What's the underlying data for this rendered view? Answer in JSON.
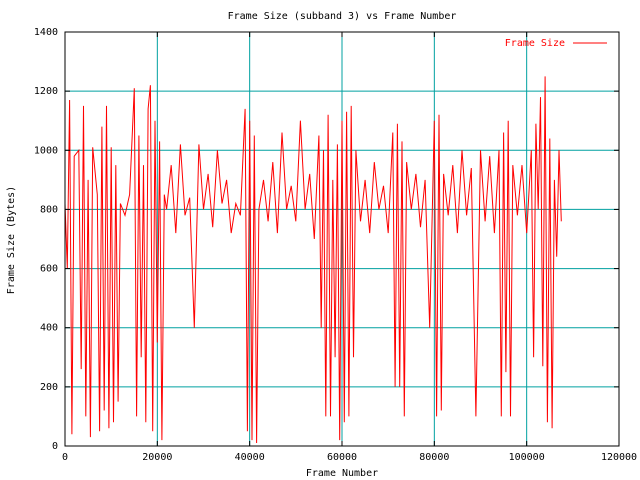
{
  "colors": {
    "background": "#ffffff",
    "grid": "#00a0a0",
    "series": "#ff0000",
    "axis": "#000000"
  },
  "chart_data": {
    "type": "line",
    "title": "Frame Size (subband 3) vs Frame Number",
    "xlabel": "Frame Number",
    "ylabel": "Frame Size (Bytes)",
    "xlim": [
      0,
      120000
    ],
    "ylim": [
      0,
      1400
    ],
    "xticks": [
      0,
      20000,
      40000,
      60000,
      80000,
      100000,
      120000
    ],
    "xtick_labels": [
      "0",
      "20000",
      "40000",
      "60000",
      "80000",
      "100000",
      "120000"
    ],
    "yticks": [
      0,
      200,
      400,
      600,
      800,
      1000,
      1200,
      1400
    ],
    "ytick_labels": [
      "0",
      "200",
      "400",
      "600",
      "800",
      "1000",
      "1200",
      "1400"
    ],
    "grid": true,
    "legend_position": "top-right",
    "x_range_of_data": [
      0,
      107500
    ],
    "typical_range": [
      650,
      1000
    ],
    "series": [
      {
        "name": "Frame Size",
        "color": "#ff0000",
        "points": [
          [
            0,
            820
          ],
          [
            500,
            600
          ],
          [
            1000,
            1170
          ],
          [
            1500,
            40
          ],
          [
            2000,
            980
          ],
          [
            3000,
            1000
          ],
          [
            3500,
            260
          ],
          [
            4000,
            1150
          ],
          [
            4500,
            100
          ],
          [
            5000,
            900
          ],
          [
            5500,
            30
          ],
          [
            6000,
            1010
          ],
          [
            7000,
            850
          ],
          [
            7500,
            50
          ],
          [
            8000,
            1080
          ],
          [
            8500,
            120
          ],
          [
            9000,
            1150
          ],
          [
            9500,
            60
          ],
          [
            10000,
            1010
          ],
          [
            10500,
            80
          ],
          [
            11000,
            950
          ],
          [
            11500,
            150
          ],
          [
            12000,
            820
          ],
          [
            13000,
            780
          ],
          [
            14000,
            850
          ],
          [
            15000,
            1210
          ],
          [
            15500,
            100
          ],
          [
            16000,
            1050
          ],
          [
            16500,
            300
          ],
          [
            17000,
            950
          ],
          [
            17500,
            80
          ],
          [
            18000,
            1140
          ],
          [
            18500,
            1220
          ],
          [
            19000,
            50
          ],
          [
            19500,
            1100
          ],
          [
            20000,
            350
          ],
          [
            20500,
            1030
          ],
          [
            21000,
            20
          ],
          [
            21500,
            850
          ],
          [
            22000,
            800
          ],
          [
            23000,
            950
          ],
          [
            24000,
            720
          ],
          [
            25000,
            1020
          ],
          [
            26000,
            780
          ],
          [
            27000,
            840
          ],
          [
            28000,
            400
          ],
          [
            29000,
            1020
          ],
          [
            30000,
            800
          ],
          [
            31000,
            920
          ],
          [
            32000,
            740
          ],
          [
            33000,
            1000
          ],
          [
            34000,
            820
          ],
          [
            35000,
            900
          ],
          [
            36000,
            720
          ],
          [
            37000,
            820
          ],
          [
            38000,
            780
          ],
          [
            39000,
            1140
          ],
          [
            39500,
            50
          ],
          [
            40000,
            1100
          ],
          [
            40500,
            20
          ],
          [
            41000,
            1050
          ],
          [
            41500,
            10
          ],
          [
            42000,
            800
          ],
          [
            43000,
            900
          ],
          [
            44000,
            760
          ],
          [
            45000,
            960
          ],
          [
            46000,
            720
          ],
          [
            47000,
            1060
          ],
          [
            48000,
            800
          ],
          [
            49000,
            880
          ],
          [
            50000,
            760
          ],
          [
            51000,
            1100
          ],
          [
            52000,
            800
          ],
          [
            53000,
            920
          ],
          [
            54000,
            700
          ],
          [
            55000,
            1050
          ],
          [
            55500,
            400
          ],
          [
            56000,
            1000
          ],
          [
            56500,
            100
          ],
          [
            57000,
            1120
          ],
          [
            57500,
            100
          ],
          [
            58000,
            900
          ],
          [
            58500,
            300
          ],
          [
            59000,
            1020
          ],
          [
            59500,
            20
          ],
          [
            60000,
            1100
          ],
          [
            60500,
            80
          ],
          [
            61000,
            1130
          ],
          [
            61500,
            100
          ],
          [
            62000,
            1150
          ],
          [
            62500,
            300
          ],
          [
            63000,
            1000
          ],
          [
            64000,
            760
          ],
          [
            65000,
            900
          ],
          [
            66000,
            720
          ],
          [
            67000,
            960
          ],
          [
            68000,
            800
          ],
          [
            69000,
            880
          ],
          [
            70000,
            720
          ],
          [
            71000,
            1060
          ],
          [
            71500,
            200
          ],
          [
            72000,
            1090
          ],
          [
            72500,
            200
          ],
          [
            73000,
            1030
          ],
          [
            73500,
            100
          ],
          [
            74000,
            960
          ],
          [
            75000,
            800
          ],
          [
            76000,
            920
          ],
          [
            77000,
            740
          ],
          [
            78000,
            900
          ],
          [
            79000,
            400
          ],
          [
            80000,
            1100
          ],
          [
            80500,
            100
          ],
          [
            81000,
            1120
          ],
          [
            81500,
            120
          ],
          [
            82000,
            920
          ],
          [
            83000,
            780
          ],
          [
            84000,
            950
          ],
          [
            85000,
            720
          ],
          [
            86000,
            1000
          ],
          [
            87000,
            780
          ],
          [
            88000,
            940
          ],
          [
            89000,
            100
          ],
          [
            90000,
            1000
          ],
          [
            91000,
            760
          ],
          [
            92000,
            980
          ],
          [
            93000,
            720
          ],
          [
            94000,
            1000
          ],
          [
            94500,
            100
          ],
          [
            95000,
            1060
          ],
          [
            95500,
            250
          ],
          [
            96000,
            1100
          ],
          [
            96500,
            100
          ],
          [
            97000,
            950
          ],
          [
            98000,
            780
          ],
          [
            99000,
            950
          ],
          [
            100000,
            720
          ],
          [
            101000,
            1000
          ],
          [
            101500,
            300
          ],
          [
            102000,
            1090
          ],
          [
            102500,
            800
          ],
          [
            103000,
            1180
          ],
          [
            103500,
            270
          ],
          [
            104000,
            1250
          ],
          [
            104500,
            80
          ],
          [
            105000,
            1040
          ],
          [
            105500,
            60
          ],
          [
            106000,
            900
          ],
          [
            106500,
            640
          ],
          [
            107000,
            1000
          ],
          [
            107500,
            760
          ]
        ]
      }
    ]
  }
}
